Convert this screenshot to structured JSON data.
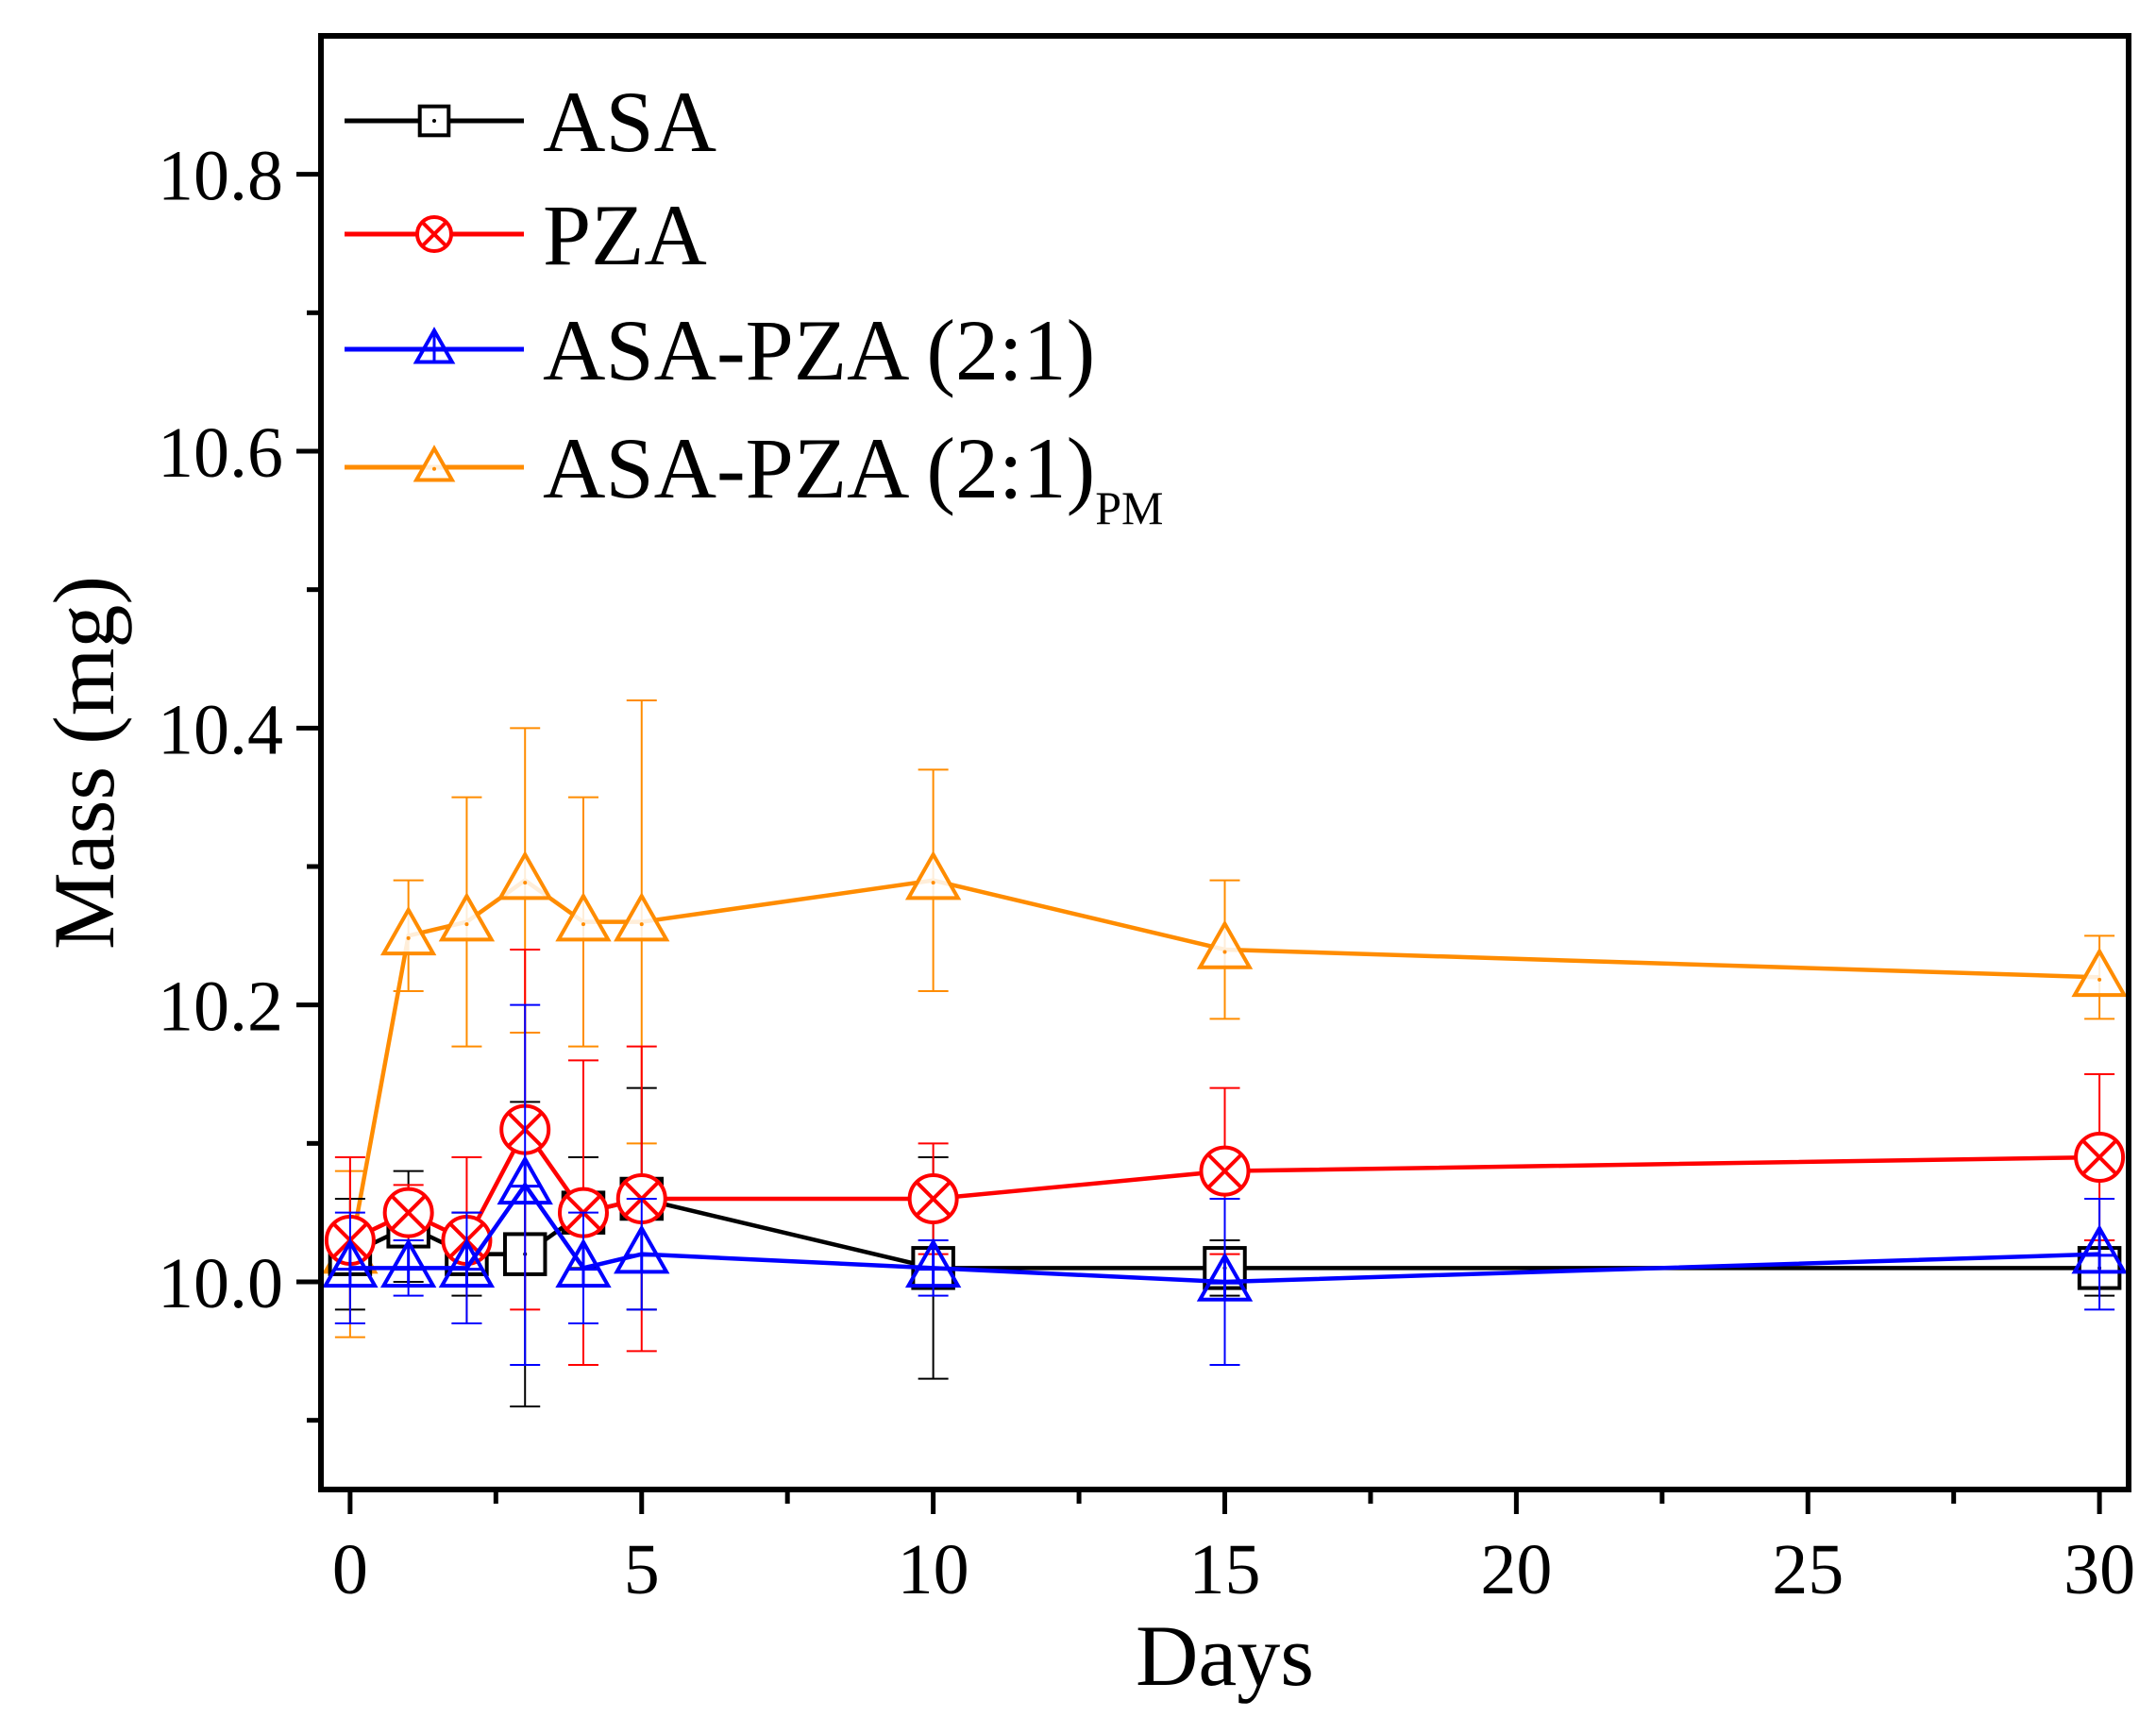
{
  "chart_data": {
    "type": "line",
    "title": "",
    "xlabel": "Days",
    "ylabel": "Mass (mg)",
    "xlim": [
      -0.5,
      30.5
    ],
    "ylim": [
      9.85,
      10.9
    ],
    "x_ticks": [
      0,
      5,
      10,
      15,
      20,
      25,
      30
    ],
    "x_tick_labels": [
      "0",
      "5",
      "10",
      "15",
      "20",
      "25",
      "30"
    ],
    "x_minor_ticks": [
      2.5,
      7.5,
      12.5,
      17.5,
      22.5,
      27.5
    ],
    "y_ticks": [
      10.0,
      10.2,
      10.4,
      10.6,
      10.8
    ],
    "y_tick_labels": [
      "10.0",
      "10.2",
      "10.4",
      "10.6",
      "10.8"
    ],
    "y_minor_ticks": [
      9.9,
      10.1,
      10.3,
      10.5,
      10.7
    ],
    "grid": false,
    "legend_position": "top-left",
    "series": [
      {
        "name": "ASA",
        "color": "#000000",
        "marker": "square",
        "x": [
          0,
          1,
          2,
          3,
          4,
          5,
          10,
          15,
          30
        ],
        "y": [
          10.02,
          10.04,
          10.02,
          10.02,
          10.05,
          10.06,
          10.01,
          10.01,
          10.01
        ],
        "error": [
          0.04,
          0.04,
          0.03,
          0.11,
          0.04,
          0.08,
          0.08,
          0.02,
          0.02
        ]
      },
      {
        "name": "PZA",
        "color": "#ff0000",
        "marker": "circle-x",
        "x": [
          0,
          1,
          2,
          3,
          4,
          5,
          10,
          15,
          30
        ],
        "y": [
          10.03,
          10.05,
          10.03,
          10.11,
          10.05,
          10.06,
          10.06,
          10.08,
          10.09
        ],
        "error": [
          0.06,
          0.02,
          0.06,
          0.13,
          0.11,
          0.11,
          0.04,
          0.06,
          0.06
        ]
      },
      {
        "name": "ASA-PZA (2:1)",
        "color": "#0000ff",
        "marker": "triangle-cross",
        "x": [
          0,
          1,
          2,
          3,
          4,
          5,
          10,
          15,
          30
        ],
        "y": [
          10.01,
          10.01,
          10.01,
          10.07,
          10.01,
          10.02,
          10.01,
          10.0,
          10.02
        ],
        "error": [
          0.04,
          0.02,
          0.04,
          0.13,
          0.04,
          0.04,
          0.02,
          0.06,
          0.04
        ]
      },
      {
        "name": "ASA-PZA (2:1)",
        "name_subscript": "PM",
        "color": "#ff8c00",
        "marker": "triangle",
        "x": [
          0,
          1,
          2,
          3,
          4,
          5,
          10,
          15,
          30
        ],
        "y": [
          10.02,
          10.25,
          10.26,
          10.29,
          10.26,
          10.26,
          10.29,
          10.24,
          10.22
        ],
        "error": [
          0.06,
          0.04,
          0.09,
          0.11,
          0.09,
          0.16,
          0.08,
          0.05,
          0.03
        ]
      }
    ]
  }
}
